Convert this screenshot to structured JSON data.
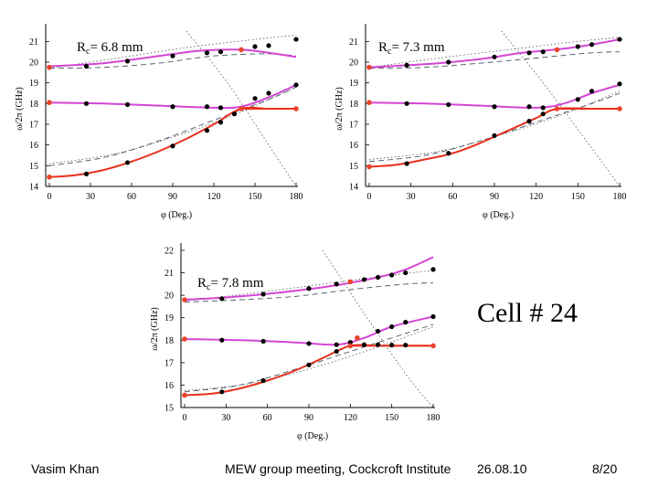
{
  "slide": {
    "cell_label": "Cell # 24",
    "footer": {
      "author": "Vasim Khan",
      "event": "MEW group meeting, Cockcroft Institute",
      "date": "26.08.10",
      "page": "8/20"
    }
  },
  "colors": {
    "fit_red": "#e8301e",
    "fit_magenta": "#d445d4",
    "dash": "#445566",
    "dot_guide": "#555555",
    "point_black": "#000000",
    "point_red": "#e8442c"
  },
  "chart_data": [
    {
      "type": "line",
      "title_main": "R",
      "title_sub": "c",
      "title_rest": "= 6.8 mm",
      "xlabel": "φ (Deg.)",
      "ylabel": "ω/2π (GHz)",
      "xlim": [
        0,
        180
      ],
      "ylim": [
        14,
        21.5
      ],
      "xticks": [
        0,
        30,
        60,
        90,
        120,
        150,
        180
      ],
      "yticks": [
        14,
        15,
        16,
        17,
        18,
        19,
        20,
        21
      ],
      "fits": [
        {
          "name": "lower",
          "color": "red",
          "x": [
            0,
            20,
            40,
            60,
            80,
            100,
            120,
            140,
            160,
            180
          ],
          "y": [
            14.45,
            14.55,
            14.8,
            15.2,
            15.7,
            16.3,
            17.0,
            17.75,
            17.75,
            17.75
          ]
        },
        {
          "name": "middle",
          "color": "magenta",
          "x": [
            0,
            40,
            80,
            120,
            140,
            160,
            180
          ],
          "y": [
            18.05,
            18.0,
            17.9,
            17.8,
            17.85,
            18.3,
            18.9
          ]
        },
        {
          "name": "upper",
          "color": "magenta",
          "x": [
            0,
            40,
            80,
            110,
            140,
            160,
            180
          ],
          "y": [
            19.8,
            19.95,
            20.3,
            20.55,
            20.6,
            20.45,
            20.25
          ]
        },
        {
          "name": "flat_red",
          "color": "red",
          "x": [
            140,
            160,
            180
          ],
          "y": [
            17.75,
            17.75,
            17.75
          ]
        }
      ],
      "dashed": [
        {
          "x": [
            0,
            40,
            80,
            120,
            160,
            180
          ],
          "y": [
            19.7,
            19.75,
            19.95,
            20.3,
            20.4,
            20.3
          ]
        },
        {
          "x": [
            0,
            40,
            80,
            120,
            160,
            180
          ],
          "y": [
            15.0,
            15.4,
            16.2,
            17.2,
            18.2,
            18.8
          ]
        }
      ],
      "dotted": [
        {
          "x": [
            0,
            50,
            100,
            140,
            180
          ],
          "y": [
            15.1,
            15.6,
            16.6,
            17.6,
            18.8
          ]
        },
        {
          "x": [
            0,
            50,
            100,
            150,
            180
          ],
          "y": [
            19.7,
            20.2,
            20.7,
            21.1,
            21.3
          ]
        },
        {
          "x": [
            100,
            130,
            160,
            180
          ],
          "y": [
            21.5,
            19.0,
            16.0,
            14.0
          ]
        }
      ],
      "points_black": [
        {
          "x": 0,
          "y": 14.45
        },
        {
          "x": 27,
          "y": 14.6
        },
        {
          "x": 57,
          "y": 15.15
        },
        {
          "x": 90,
          "y": 15.95
        },
        {
          "x": 115,
          "y": 16.7
        },
        {
          "x": 125,
          "y": 17.1
        },
        {
          "x": 135,
          "y": 17.5
        },
        {
          "x": 27,
          "y": 18.0
        },
        {
          "x": 57,
          "y": 17.95
        },
        {
          "x": 90,
          "y": 17.85
        },
        {
          "x": 115,
          "y": 17.85
        },
        {
          "x": 125,
          "y": 17.8
        },
        {
          "x": 150,
          "y": 18.25
        },
        {
          "x": 160,
          "y": 18.5
        },
        {
          "x": 180,
          "y": 18.9
        },
        {
          "x": 27,
          "y": 19.8
        },
        {
          "x": 57,
          "y": 20.05
        },
        {
          "x": 90,
          "y": 20.3
        },
        {
          "x": 115,
          "y": 20.45
        },
        {
          "x": 125,
          "y": 20.5
        },
        {
          "x": 150,
          "y": 20.75
        },
        {
          "x": 160,
          "y": 20.8
        },
        {
          "x": 180,
          "y": 21.1
        }
      ],
      "points_red": [
        {
          "x": 0,
          "y": 19.75
        },
        {
          "x": 0,
          "y": 18.05
        },
        {
          "x": 0,
          "y": 14.45
        },
        {
          "x": 140,
          "y": 20.6
        },
        {
          "x": 140,
          "y": 17.75
        },
        {
          "x": 180,
          "y": 17.75
        }
      ]
    },
    {
      "type": "line",
      "title_main": "R",
      "title_sub": "c",
      "title_rest": "= 7.3 mm",
      "xlabel": "φ (Deg.)",
      "ylabel": "ω/2π (GHz)",
      "xlim": [
        0,
        180
      ],
      "ylim": [
        14,
        21.5
      ],
      "xticks": [
        0,
        30,
        60,
        90,
        120,
        150,
        180
      ],
      "yticks": [
        14,
        15,
        16,
        17,
        18,
        19,
        20,
        21
      ],
      "fits": [
        {
          "name": "lower",
          "color": "red",
          "x": [
            0,
            20,
            40,
            60,
            80,
            100,
            120,
            135,
            160,
            180
          ],
          "y": [
            14.95,
            15.05,
            15.3,
            15.6,
            16.1,
            16.7,
            17.3,
            17.75,
            17.75,
            17.75
          ]
        },
        {
          "name": "middle",
          "color": "magenta",
          "x": [
            0,
            40,
            80,
            120,
            140,
            160,
            180
          ],
          "y": [
            18.05,
            18.0,
            17.9,
            17.8,
            18.0,
            18.5,
            18.9
          ]
        },
        {
          "name": "upper",
          "color": "magenta",
          "x": [
            0,
            40,
            80,
            110,
            140,
            160,
            180
          ],
          "y": [
            19.75,
            19.9,
            20.15,
            20.45,
            20.65,
            20.85,
            21.1
          ]
        },
        {
          "name": "flat_red",
          "color": "red",
          "x": [
            135,
            160,
            180
          ],
          "y": [
            17.75,
            17.75,
            17.75
          ]
        }
      ],
      "dashed": [
        {
          "x": [
            0,
            40,
            80,
            120,
            160,
            180
          ],
          "y": [
            19.7,
            19.75,
            19.95,
            20.2,
            20.45,
            20.5
          ]
        },
        {
          "x": [
            0,
            40,
            80,
            120,
            160,
            180
          ],
          "y": [
            15.2,
            15.5,
            16.2,
            17.1,
            18.0,
            18.5
          ]
        }
      ],
      "dotted": [
        {
          "x": [
            0,
            50,
            100,
            140,
            180
          ],
          "y": [
            15.3,
            15.7,
            16.6,
            17.5,
            18.6
          ]
        },
        {
          "x": [
            0,
            50,
            100,
            150,
            180
          ],
          "y": [
            19.75,
            20.2,
            20.6,
            21.0,
            21.2
          ]
        },
        {
          "x": [
            95,
            125,
            155,
            180
          ],
          "y": [
            21.5,
            19.0,
            16.3,
            14.0
          ]
        }
      ],
      "points_black": [
        {
          "x": 27,
          "y": 15.1
        },
        {
          "x": 57,
          "y": 15.6
        },
        {
          "x": 90,
          "y": 16.45
        },
        {
          "x": 115,
          "y": 17.15
        },
        {
          "x": 125,
          "y": 17.5
        },
        {
          "x": 27,
          "y": 18.0
        },
        {
          "x": 57,
          "y": 17.95
        },
        {
          "x": 90,
          "y": 17.85
        },
        {
          "x": 115,
          "y": 17.85
        },
        {
          "x": 125,
          "y": 17.8
        },
        {
          "x": 150,
          "y": 18.2
        },
        {
          "x": 160,
          "y": 18.6
        },
        {
          "x": 180,
          "y": 18.95
        },
        {
          "x": 27,
          "y": 19.85
        },
        {
          "x": 57,
          "y": 20.0
        },
        {
          "x": 90,
          "y": 20.25
        },
        {
          "x": 115,
          "y": 20.45
        },
        {
          "x": 125,
          "y": 20.5
        },
        {
          "x": 150,
          "y": 20.75
        },
        {
          "x": 160,
          "y": 20.85
        },
        {
          "x": 180,
          "y": 21.1
        }
      ],
      "points_red": [
        {
          "x": 0,
          "y": 19.75
        },
        {
          "x": 0,
          "y": 18.05
        },
        {
          "x": 0,
          "y": 14.95
        },
        {
          "x": 135,
          "y": 20.6
        },
        {
          "x": 135,
          "y": 17.75
        },
        {
          "x": 180,
          "y": 17.75
        }
      ]
    },
    {
      "type": "line",
      "title_main": "R",
      "title_sub": "c",
      "title_rest": "= 7.8 mm",
      "xlabel": "φ (Deg.)",
      "ylabel": "ω/2π (GHz)",
      "xlim": [
        0,
        180
      ],
      "ylim": [
        15,
        22
      ],
      "xticks": [
        0,
        30,
        60,
        90,
        120,
        150,
        180
      ],
      "yticks": [
        15,
        16,
        17,
        18,
        19,
        20,
        21,
        22
      ],
      "fits": [
        {
          "name": "lower",
          "color": "red",
          "x": [
            0,
            20,
            40,
            60,
            80,
            100,
            120,
            140,
            160,
            180
          ],
          "y": [
            15.55,
            15.62,
            15.85,
            16.2,
            16.65,
            17.2,
            17.75,
            17.75,
            17.75,
            17.75
          ]
        },
        {
          "name": "middle",
          "color": "magenta",
          "x": [
            0,
            40,
            80,
            110,
            130,
            150,
            180
          ],
          "y": [
            18.05,
            18.0,
            17.9,
            17.8,
            18.1,
            18.6,
            19.05
          ]
        },
        {
          "name": "upper",
          "color": "magenta",
          "x": [
            0,
            40,
            80,
            110,
            140,
            160,
            180
          ],
          "y": [
            19.8,
            19.95,
            20.2,
            20.45,
            20.8,
            21.15,
            21.7
          ]
        },
        {
          "name": "flat_red",
          "color": "red",
          "x": [
            120,
            150,
            180
          ],
          "y": [
            17.75,
            17.75,
            17.75
          ]
        }
      ],
      "dashed": [
        {
          "x": [
            0,
            40,
            80,
            120,
            160,
            180
          ],
          "y": [
            19.7,
            19.8,
            19.95,
            20.25,
            20.5,
            20.55
          ]
        },
        {
          "x": [
            0,
            40,
            80,
            120,
            160,
            180
          ],
          "y": [
            15.7,
            16.0,
            16.7,
            17.5,
            18.3,
            18.7
          ]
        }
      ],
      "dotted": [
        {
          "x": [
            0,
            50,
            100,
            140,
            180
          ],
          "y": [
            15.75,
            16.1,
            16.9,
            17.7,
            18.6
          ]
        },
        {
          "x": [
            0,
            50,
            100,
            150,
            180
          ],
          "y": [
            19.75,
            20.1,
            20.5,
            20.9,
            21.1
          ]
        },
        {
          "x": [
            100,
            130,
            160,
            180
          ],
          "y": [
            22.0,
            19.2,
            16.5,
            15.0
          ]
        }
      ],
      "points_black": [
        {
          "x": 27,
          "y": 15.7
        },
        {
          "x": 57,
          "y": 16.2
        },
        {
          "x": 90,
          "y": 16.9
        },
        {
          "x": 110,
          "y": 17.5
        },
        {
          "x": 27,
          "y": 18.0
        },
        {
          "x": 57,
          "y": 17.95
        },
        {
          "x": 90,
          "y": 17.85
        },
        {
          "x": 110,
          "y": 17.8
        },
        {
          "x": 130,
          "y": 17.8
        },
        {
          "x": 140,
          "y": 17.8
        },
        {
          "x": 150,
          "y": 17.78
        },
        {
          "x": 160,
          "y": 17.78
        },
        {
          "x": 120,
          "y": 17.9
        },
        {
          "x": 140,
          "y": 18.4
        },
        {
          "x": 150,
          "y": 18.6
        },
        {
          "x": 160,
          "y": 18.8
        },
        {
          "x": 180,
          "y": 19.05
        },
        {
          "x": 27,
          "y": 19.85
        },
        {
          "x": 57,
          "y": 20.05
        },
        {
          "x": 90,
          "y": 20.3
        },
        {
          "x": 110,
          "y": 20.5
        },
        {
          "x": 130,
          "y": 20.7
        },
        {
          "x": 140,
          "y": 20.8
        },
        {
          "x": 150,
          "y": 20.9
        },
        {
          "x": 160,
          "y": 21.0
        },
        {
          "x": 180,
          "y": 21.15
        }
      ],
      "points_red": [
        {
          "x": 0,
          "y": 19.8
        },
        {
          "x": 0,
          "y": 18.05
        },
        {
          "x": 0,
          "y": 15.55
        },
        {
          "x": 120,
          "y": 20.6
        },
        {
          "x": 120,
          "y": 17.75
        },
        {
          "x": 125,
          "y": 18.1
        },
        {
          "x": 180,
          "y": 17.75
        }
      ]
    }
  ]
}
